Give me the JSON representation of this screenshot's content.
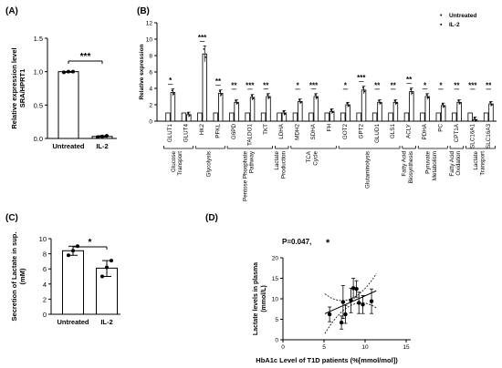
{
  "chart_data": [
    {
      "panel": "(A)",
      "type": "bar",
      "ylabel_lines": [
        "Relative expression level",
        "SRA/HPRT1"
      ],
      "categories": [
        "Untreated",
        "IL-2"
      ],
      "values": [
        1.0,
        0.03
      ],
      "points": [
        [
          0.99,
          1.0,
          1.0
        ],
        [
          0.02,
          0.03,
          0.04
        ]
      ],
      "ylim": [
        0,
        1.5
      ],
      "yticks": [
        "0.0",
        "0.5",
        "1.0",
        "1.5"
      ],
      "significance": [
        "***"
      ]
    },
    {
      "panel": "(B)",
      "type": "bar",
      "ylabel": "Relative expression",
      "legend": [
        "Untreated",
        "IL-2"
      ],
      "legend_marks": [
        "•",
        "▪"
      ],
      "genes": [
        "GLUT1",
        "GLUT4",
        "HK2",
        "PFKL",
        "G6PD",
        "TALDO1",
        "TKT",
        "LDHA",
        "MDH2",
        "SDHA",
        "FH",
        "GOT2",
        "GPT2",
        "GLUD1",
        "GLS1",
        "ACLY",
        "PDHA",
        "PC",
        "CPT1A",
        "SLC16A1",
        "SLC16A3"
      ],
      "untreated": [
        1,
        1,
        1,
        1,
        1,
        1,
        1,
        1,
        1,
        1,
        1,
        1,
        1,
        1,
        1,
        1,
        1,
        1,
        1,
        1,
        1
      ],
      "il2": [
        3.5,
        0.8,
        8.2,
        3.4,
        2.3,
        2.9,
        3.0,
        1.0,
        2.4,
        3.0,
        1.2,
        2.0,
        3.8,
        2.3,
        2.3,
        3.6,
        3.0,
        1.9,
        2.3,
        0.2,
        2.1
      ],
      "significance": [
        "*",
        "",
        "***",
        "**",
        "**",
        "***",
        "**",
        "",
        "*",
        "***",
        "",
        "*",
        "***",
        "**",
        "**",
        "**",
        "*",
        "*",
        "**",
        "***",
        "**"
      ],
      "yticks": [
        "0",
        "2",
        "4",
        "6",
        "8",
        "10",
        "12"
      ],
      "ylim": [
        0,
        12
      ],
      "groups": [
        {
          "lines": [
            "Glucose",
            "Transport"
          ],
          "from": 0,
          "to": 1
        },
        {
          "lines": [
            "Glycolysis"
          ],
          "from": 2,
          "to": 3
        },
        {
          "lines": [
            "Pentose Phosphate",
            "Pathway"
          ],
          "from": 4,
          "to": 6
        },
        {
          "lines": [
            "Lactate",
            "Production"
          ],
          "from": 7,
          "to": 7
        },
        {
          "lines": [
            "TCA",
            "Cycle"
          ],
          "from": 8,
          "to": 10
        },
        {
          "lines": [
            "Glutaminolysis"
          ],
          "from": 11,
          "to": 14
        },
        {
          "lines": [
            "Fatty Acid",
            "Biosynthesis"
          ],
          "from": 15,
          "to": 15
        },
        {
          "lines": [
            "Pyruvate",
            "Metabolism"
          ],
          "from": 16,
          "to": 17
        },
        {
          "lines": [
            "Fatty Acid",
            "Oxidation"
          ],
          "from": 18,
          "to": 18
        },
        {
          "lines": [
            "Lactate",
            "Transport"
          ],
          "from": 19,
          "to": 20
        }
      ]
    },
    {
      "panel": "(C)",
      "type": "bar",
      "ylabel_lines": [
        "Secretion of Lactate in sup.",
        "(mM)"
      ],
      "categories": [
        "Untreated",
        "IL-2"
      ],
      "values": [
        8.4,
        6.1
      ],
      "points": [
        [
          7.8,
          8.4,
          9.0
        ],
        [
          5.0,
          6.2,
          7.1
        ]
      ],
      "ylim": [
        0,
        10
      ],
      "yticks": [
        "0",
        "2",
        "4",
        "6",
        "8",
        "10"
      ],
      "significance": [
        "*"
      ]
    },
    {
      "panel": "(D)",
      "type": "scatter",
      "annotation": "P=0.047,",
      "annotation_star": "*",
      "xlabel": "HbA1c Level of T1D patients (%[mmol/mol])",
      "ylabel_lines": [
        "Lactate levels in plasma",
        "(mmol/L)"
      ],
      "xlim": [
        0,
        12
      ],
      "ylim": [
        0,
        20
      ],
      "xticks": [
        "0",
        "5",
        "10",
        "15"
      ],
      "yticks": [
        "0",
        "5",
        "10",
        "15",
        "20"
      ],
      "points": [
        {
          "x": 5.9,
          "y": 6.2,
          "err": 1.8
        },
        {
          "x": 7.4,
          "y": 4.2,
          "err": 1.6
        },
        {
          "x": 7.6,
          "y": 9.2,
          "err": 4.0
        },
        {
          "x": 7.9,
          "y": 6.2,
          "err": 2.2
        },
        {
          "x": 8.6,
          "y": 9.6,
          "err": 3.0
        },
        {
          "x": 8.9,
          "y": 12.6,
          "err": 2.4
        },
        {
          "x": 9.3,
          "y": 12.4,
          "err": 2.0
        },
        {
          "x": 9.6,
          "y": 9.0,
          "err": 2.6
        },
        {
          "x": 10.1,
          "y": 8.6,
          "err": 2.2
        },
        {
          "x": 11.2,
          "y": 9.4,
          "err": 3.0
        }
      ],
      "fit": {
        "slope": 0.86,
        "intercept": 1.8
      }
    }
  ]
}
